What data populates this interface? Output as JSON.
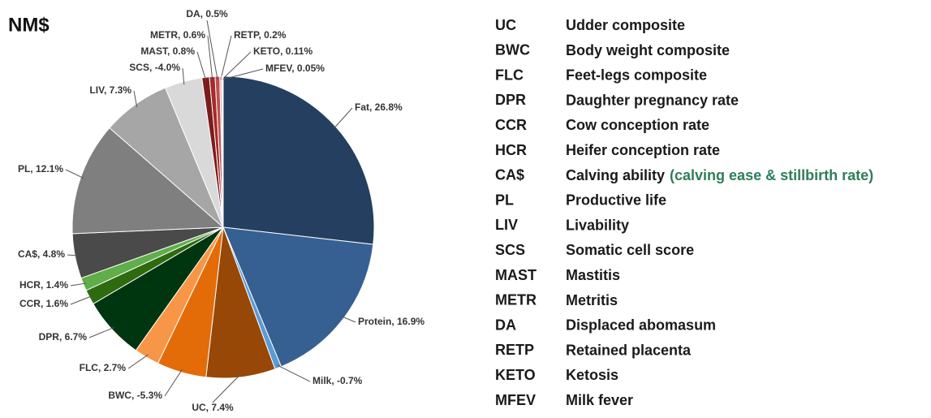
{
  "chart_data": {
    "type": "pie",
    "title": "NM$",
    "labels": [
      "Fat, 26.8%",
      "Protein, 16.9%",
      "Milk, -0.7%",
      "UC, 7.4%",
      "BWC, -5.3%",
      "FLC, 2.7%",
      "DPR, 6.7%",
      "CCR, 1.6%",
      "HCR, 1.4%",
      "CA$, 4.8%",
      "PL, 12.1%",
      "LIV, 7.3%",
      "SCS, -4.0%",
      "MAST, 0.8%",
      "METR, 0.6%",
      "DA, 0.5%",
      "RETP, 0.2%",
      "KETO, 0.11%",
      "MFEV, 0.05%"
    ],
    "values": [
      26.8,
      16.9,
      -0.7,
      7.4,
      -5.3,
      2.7,
      6.7,
      1.6,
      1.4,
      4.8,
      12.1,
      7.3,
      -4.0,
      0.8,
      0.6,
      0.5,
      0.2,
      0.11,
      0.05
    ],
    "colors": [
      "#243f60",
      "#366092",
      "#5b9bd5",
      "#974806",
      "#e36c09",
      "#f79646",
      "#00360f",
      "#2e6b0f",
      "#5fae4a",
      "#4a4a4a",
      "#7f7f7f",
      "#a6a6a6",
      "#d9d9d9",
      "#7b1c1c",
      "#a52a2a",
      "#c0504d",
      "#e6a0a0",
      "#f2c0c0",
      "#fadada"
    ]
  },
  "legend_table": {
    "rows": [
      {
        "abbr": "UC",
        "desc": "Udder composite"
      },
      {
        "abbr": "BWC",
        "desc": "Body weight composite"
      },
      {
        "abbr": "FLC",
        "desc": "Feet-legs composite"
      },
      {
        "abbr": "DPR",
        "desc": "Daughter pregnancy rate"
      },
      {
        "abbr": "CCR",
        "desc": "Cow conception rate"
      },
      {
        "abbr": "HCR",
        "desc": "Heifer conception rate"
      },
      {
        "abbr": "CA$",
        "desc": "Calving ability",
        "note": "(calving ease & stillbirth rate)"
      },
      {
        "abbr": "PL",
        "desc": "Productive life"
      },
      {
        "abbr": "LIV",
        "desc": "Livability"
      },
      {
        "abbr": "SCS",
        "desc": "Somatic cell score"
      },
      {
        "abbr": "MAST",
        "desc": "Mastitis"
      },
      {
        "abbr": "METR",
        "desc": "Metritis"
      },
      {
        "abbr": "DA",
        "desc": "Displaced abomasum"
      },
      {
        "abbr": "RETP",
        "desc": "Retained placenta"
      },
      {
        "abbr": "KETO",
        "desc": "Ketosis"
      },
      {
        "abbr": "MFEV",
        "desc": "Milk fever"
      }
    ]
  }
}
